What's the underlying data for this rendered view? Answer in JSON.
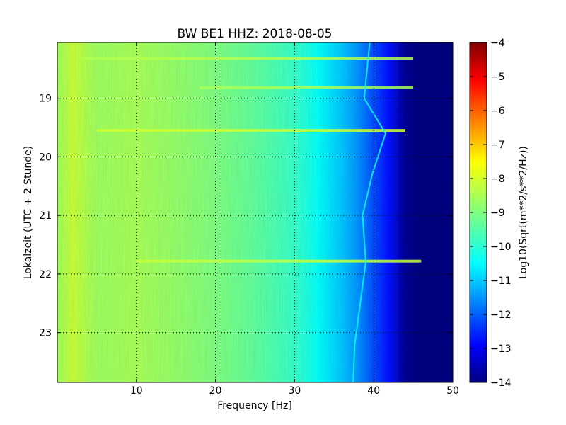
{
  "chart_data": {
    "type": "heatmap",
    "title": "BW BE1 HHZ: 2018-08-05",
    "xlabel": "Frequency [Hz]",
    "ylabel": "Lokalzeit (UTC + 2 Stunde)",
    "xlim": [
      0,
      50
    ],
    "ylim": [
      18.05,
      23.85
    ],
    "y_inverted": true,
    "x_ticks": [
      10,
      20,
      30,
      40,
      50
    ],
    "x_tick_labels": [
      "10",
      "20",
      "30",
      "40",
      "50"
    ],
    "y_ticks": [
      19,
      20,
      21,
      22,
      23
    ],
    "y_tick_labels": [
      "19",
      "20",
      "21",
      "22",
      "23"
    ],
    "grid": true,
    "colormap": "jet",
    "colorbar": {
      "label": "Log10(Sqrt(m**2/s**2/Hz))",
      "range": [
        -14,
        -4
      ],
      "ticks": [
        -4,
        -5,
        -6,
        -7,
        -8,
        -9,
        -10,
        -11,
        -12,
        -13,
        -14
      ],
      "tick_labels": [
        "−4",
        "−5",
        "−6",
        "−7",
        "−8",
        "−9",
        "−10",
        "−11",
        "−12",
        "−13",
        "−14"
      ]
    },
    "spectrum_profile": [
      {
        "frequency": 0.5,
        "value": -8.6
      },
      {
        "frequency": 2,
        "value": -8.3
      },
      {
        "frequency": 5,
        "value": -8.7
      },
      {
        "frequency": 10,
        "value": -8.6
      },
      {
        "frequency": 15,
        "value": -8.8
      },
      {
        "frequency": 20,
        "value": -9.0
      },
      {
        "frequency": 25,
        "value": -9.3
      },
      {
        "frequency": 30,
        "value": -9.7
      },
      {
        "frequency": 33,
        "value": -10.2
      },
      {
        "frequency": 36,
        "value": -10.8
      },
      {
        "frequency": 38,
        "value": -11.3
      },
      {
        "frequency": 40,
        "value": -12.0
      },
      {
        "frequency": 42,
        "value": -12.6
      },
      {
        "frequency": 44,
        "value": -13.8
      },
      {
        "frequency": 46,
        "value": -14
      },
      {
        "frequency": 50,
        "value": -14
      }
    ],
    "horizontal_bands": [
      {
        "time": 18.32,
        "freq_range": [
          3,
          45
        ],
        "value": -8.5
      },
      {
        "time": 18.82,
        "freq_range": [
          18,
          45
        ],
        "value": -8.6
      },
      {
        "time": 19.55,
        "freq_range": [
          5,
          44
        ],
        "value": -8.2
      },
      {
        "time": 21.78,
        "freq_range": [
          10,
          46
        ],
        "value": -8.3
      }
    ],
    "tonal_line": {
      "value": -10.3,
      "points": [
        {
          "time": 18.05,
          "frequency": 39.5
        },
        {
          "time": 19.0,
          "frequency": 38.8
        },
        {
          "time": 19.6,
          "frequency": 41.5
        },
        {
          "time": 20.3,
          "frequency": 39.8
        },
        {
          "time": 21.0,
          "frequency": 38.6
        },
        {
          "time": 21.8,
          "frequency": 39.0
        },
        {
          "time": 22.5,
          "frequency": 38.3
        },
        {
          "time": 23.2,
          "frequency": 37.6
        },
        {
          "time": 23.85,
          "frequency": 37.4
        }
      ]
    }
  }
}
